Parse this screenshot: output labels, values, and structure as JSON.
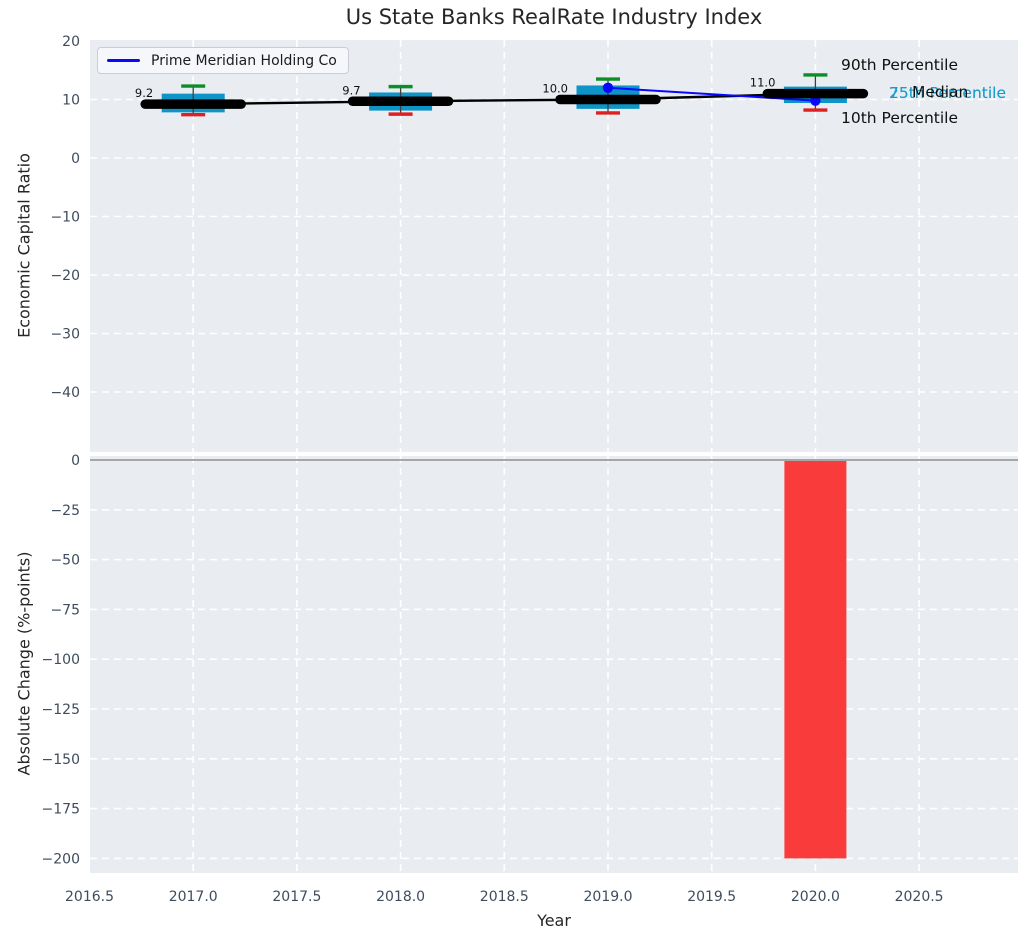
{
  "title": "Us State Banks RealRate Industry Index",
  "legend": {
    "label": "Prime Meridian Holding Co"
  },
  "annotations": {
    "p90": "90th Percentile",
    "p75": "75th Percentile",
    "median": "Median",
    "p25": "25th Percentile",
    "p10": "10th Percentile"
  },
  "colors": {
    "axes_bg": "#e9edf1",
    "grid": "#ffffff",
    "box_fill": "#0f94c8",
    "p90_cap": "#0a8f26",
    "p10_cap": "#e02020",
    "median_line": "#000000",
    "company_line": "#0808ff",
    "bar_negative": "#fa3b3b",
    "zero_line": "#a6a6a6",
    "tick_label": "#3e4c5e",
    "whisker": "#3f3f3f",
    "annotation_text": "#111111"
  },
  "chart_data": [
    {
      "type": "box",
      "title": "Us State Banks RealRate Industry Index",
      "ylabel": "Economic Capital Ratio",
      "ylim": [
        -50.5,
        20.3
      ],
      "grid": true,
      "legend_position": "upper left",
      "yticks": [
        20,
        10,
        0,
        -10,
        -20,
        -30,
        -40
      ],
      "ytick_labels": [
        "20",
        "10",
        "0",
        "−10",
        "−20",
        "−30",
        "−40"
      ],
      "x": [
        2017,
        2018,
        2019,
        2020
      ],
      "boxes": {
        "p90": [
          12.3,
          12.2,
          13.5,
          14.2
        ],
        "p75": [
          11.0,
          11.2,
          12.4,
          12.2
        ],
        "median": [
          9.2,
          9.7,
          10.0,
          11.0
        ],
        "p25": [
          7.8,
          8.1,
          8.4,
          9.4
        ],
        "p10": [
          7.4,
          7.5,
          7.7,
          8.2
        ]
      },
      "median_labels": [
        "9.2",
        "9.7",
        "10.0",
        "11.0"
      ],
      "company": {
        "name": "Prime Meridian Holding Co",
        "x": [
          2019,
          2020
        ],
        "values": [
          12.0,
          9.8
        ]
      }
    },
    {
      "type": "bar",
      "ylabel": "Absolute Change (%-points)",
      "xlabel": "Year",
      "ylim": [
        -207,
        3
      ],
      "grid": true,
      "yticks": [
        0,
        -25,
        -50,
        -75,
        -100,
        -125,
        -150,
        -175,
        -200
      ],
      "ytick_labels": [
        "0",
        "−25",
        "−50",
        "−75",
        "−100",
        "−125",
        "−150",
        "−175",
        "−200"
      ],
      "xticks": [
        2016.5,
        2017.0,
        2017.5,
        2018.0,
        2018.5,
        2019.0,
        2019.5,
        2020.0,
        2020.5
      ],
      "xtick_labels": [
        "2016.5",
        "2017.0",
        "2017.5",
        "2018.0",
        "2018.5",
        "2019.0",
        "2019.5",
        "2020.0",
        "2020.5"
      ],
      "xlim": [
        2016.5,
        2020.98
      ],
      "bars": [
        {
          "x": 2020,
          "value": -200
        }
      ]
    }
  ]
}
